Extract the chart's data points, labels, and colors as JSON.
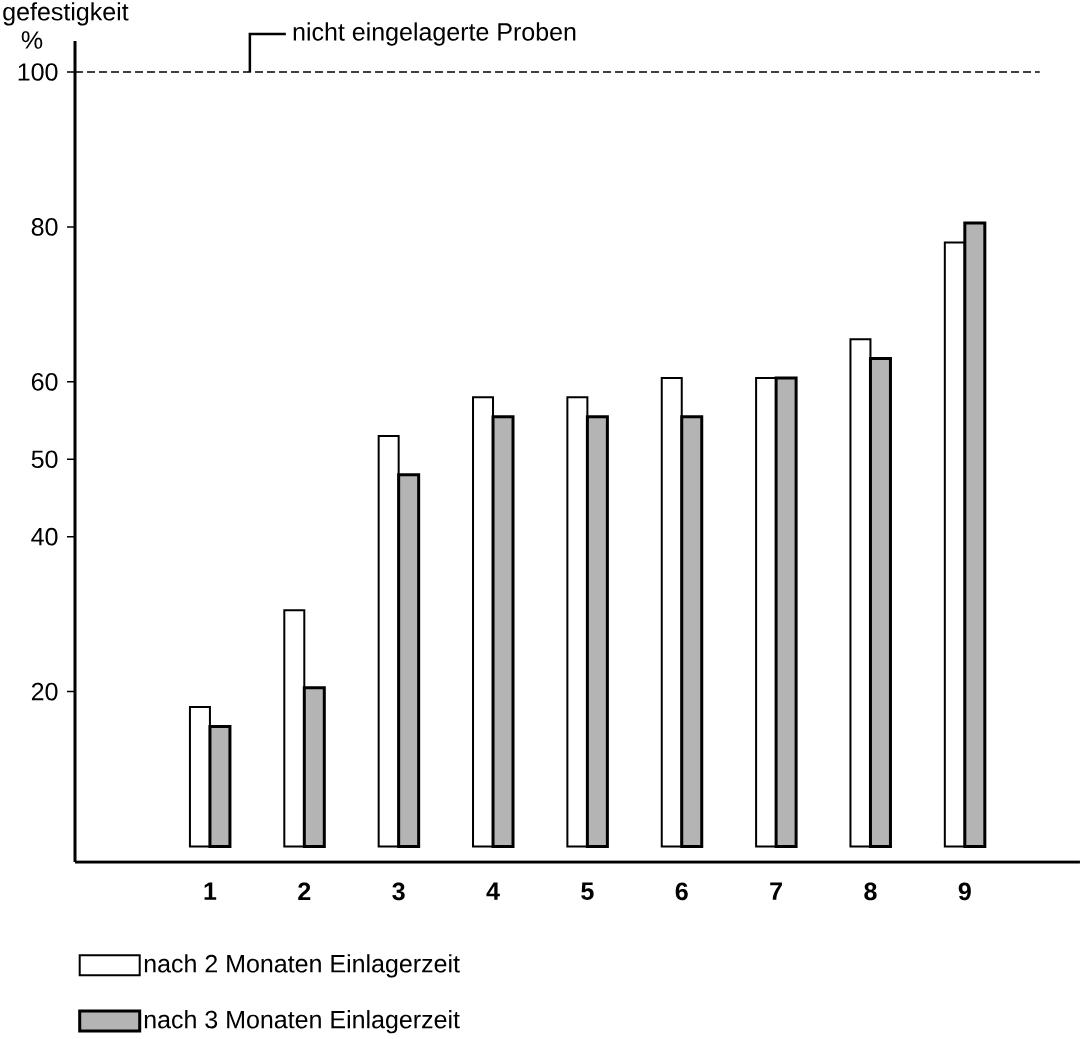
{
  "chart_data": {
    "type": "bar",
    "title": "gefestigkeit",
    "ylabel": "%",
    "categories": [
      "1",
      "2",
      "3",
      "4",
      "5",
      "6",
      "7",
      "8",
      "9"
    ],
    "series": [
      {
        "name": "nach 2 Monaten Einlagerzeit",
        "color": "#ffffff",
        "values": [
          18,
          30.5,
          53,
          58,
          58,
          60.5,
          60.5,
          65.5,
          78
        ]
      },
      {
        "name": "nach 3 Monaten Einlagerzeit",
        "color": "#b4b4b4",
        "values": [
          15.5,
          20.5,
          48,
          55.5,
          55.5,
          55.5,
          60.5,
          63,
          80.5
        ]
      }
    ],
    "ylim": [
      -2,
      104
    ],
    "yticks": [
      20,
      40,
      50,
      60,
      80,
      100
    ],
    "ref_lines": [
      {
        "axis": "y",
        "value": 100,
        "label": "nicht eingelagerte Proben",
        "line_style": "dashed"
      }
    ],
    "legend": "bottom"
  }
}
